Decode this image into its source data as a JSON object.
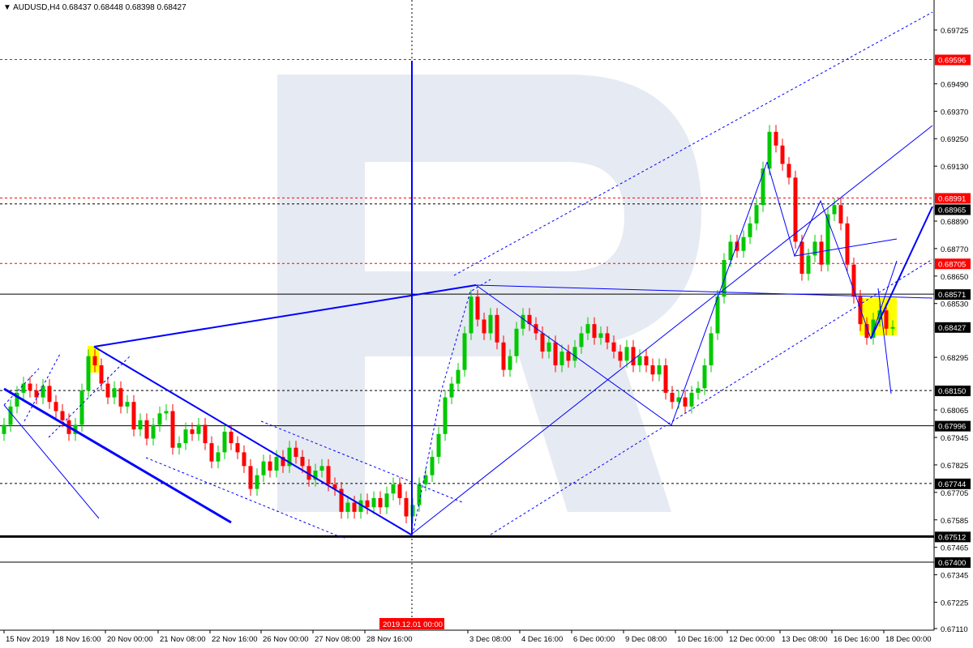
{
  "header": {
    "collapse_icon": "triangle-down-icon",
    "symbol": "AUDUSD,H4",
    "quote": "0.68437 0.68448 0.68398 0.68427"
  },
  "colors": {
    "bull": "#00c800",
    "bear": "#ff0000",
    "trend": "#0000ff",
    "highlight": "#ffff00",
    "watermark": "#e6eaf2",
    "level_red": "#ff0000",
    "level_black": "#000000"
  },
  "chart_data": {
    "type": "candlestick",
    "symbol": "AUDUSD",
    "timeframe": "H4",
    "ylim": [
      0.6705,
      0.6985
    ],
    "y_ticks": [
      "0.69725",
      "0.69490",
      "0.69370",
      "0.69250",
      "0.69130",
      "0.68890",
      "0.68770",
      "0.68650",
      "0.68530",
      "0.68295",
      "0.68065",
      "0.67945",
      "0.67825",
      "0.67705",
      "0.67585",
      "0.67465",
      "0.67345",
      "0.67225",
      "0.67110"
    ],
    "x_ticks": [
      "15 Nov 2019",
      "18 Nov 16:00",
      "20 Nov 00:00",
      "21 Nov 08:00",
      "22 Nov 16:00",
      "26 Nov 00:00",
      "27 Nov 08:00",
      "28 Nov 16:00",
      "3 Dec 08:00",
      "4 Dec 16:00",
      "6 Dec 00:00",
      "9 Dec 08:00",
      "10 Dec 16:00",
      "12 Dec 00:00",
      "13 Dec 08:00",
      "16 Dec 16:00",
      "18 Dec 00:00"
    ],
    "crosshair_time": "2019.12.01 00:00",
    "closes": [
      0.68,
      0.6808,
      0.6814,
      0.6818,
      0.6815,
      0.6812,
      0.6817,
      0.681,
      0.6806,
      0.6802,
      0.6796,
      0.68,
      0.6815,
      0.683,
      0.6826,
      0.6818,
      0.6812,
      0.6816,
      0.6808,
      0.681,
      0.6798,
      0.6802,
      0.6794,
      0.68,
      0.6805,
      0.6806,
      0.679,
      0.6792,
      0.6798,
      0.6796,
      0.68,
      0.6792,
      0.6784,
      0.6788,
      0.6797,
      0.6792,
      0.6788,
      0.6782,
      0.6772,
      0.6778,
      0.6784,
      0.678,
      0.6786,
      0.6782,
      0.679,
      0.6786,
      0.6782,
      0.6776,
      0.678,
      0.6782,
      0.6774,
      0.6772,
      0.6762,
      0.6766,
      0.6762,
      0.6767,
      0.6764,
      0.6768,
      0.6764,
      0.677,
      0.6774,
      0.6768,
      0.676,
      0.6765,
      0.6774,
      0.6778,
      0.6786,
      0.6796,
      0.6812,
      0.6818,
      0.6824,
      0.684,
      0.6856,
      0.6846,
      0.684,
      0.6848,
      0.6836,
      0.6824,
      0.683,
      0.6842,
      0.6848,
      0.6844,
      0.684,
      0.6832,
      0.6836,
      0.6826,
      0.6832,
      0.6828,
      0.6834,
      0.684,
      0.6844,
      0.6838,
      0.684,
      0.6836,
      0.6832,
      0.6828,
      0.6834,
      0.6826,
      0.683,
      0.6826,
      0.6822,
      0.6826,
      0.6814,
      0.681,
      0.6812,
      0.6808,
      0.6814,
      0.6816,
      0.6826,
      0.684,
      0.6856,
      0.6872,
      0.688,
      0.6876,
      0.6882,
      0.6888,
      0.6896,
      0.6912,
      0.6928,
      0.6922,
      0.6914,
      0.6908,
      0.688,
      0.6866,
      0.6874,
      0.688,
      0.687,
      0.6892,
      0.6896,
      0.6888,
      0.687,
      0.6856,
      0.6844,
      0.6838,
      0.6846,
      0.685,
      0.6842,
      0.68427
    ],
    "levels": [
      {
        "price": "0.69596",
        "style": "dotted",
        "color": "red"
      },
      {
        "price": "0.68991",
        "style": "dotted",
        "color": "red"
      },
      {
        "price": "0.68965",
        "style": "dotted",
        "color": "black"
      },
      {
        "price": "0.68705",
        "style": "dotted",
        "color": "red"
      },
      {
        "price": "0.68571",
        "style": "solid",
        "color": "black"
      },
      {
        "price": "0.68427",
        "style": "none",
        "color": "black"
      },
      {
        "price": "0.68150",
        "style": "dotted",
        "color": "black"
      },
      {
        "price": "0.67996",
        "style": "solid",
        "color": "black"
      },
      {
        "price": "0.67744",
        "style": "dotted",
        "color": "black"
      },
      {
        "price": "0.67512",
        "style": "thick",
        "color": "black"
      },
      {
        "price": "0.67400",
        "style": "solid",
        "color": "black"
      }
    ]
  }
}
